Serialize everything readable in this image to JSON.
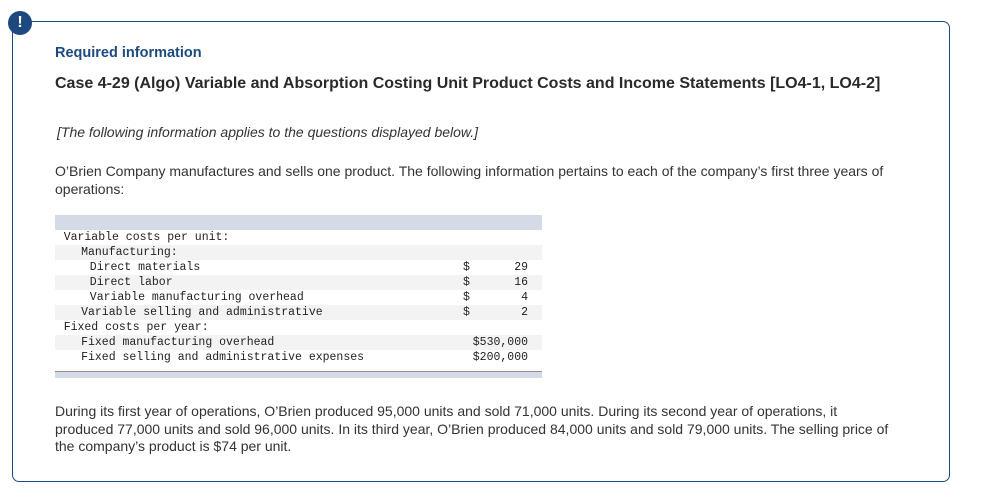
{
  "badge": {
    "icon": "exclamation-icon",
    "glyph": "!"
  },
  "header": {
    "required_label": "Required information",
    "case_title": "Case 4-29 (Algo) Variable and Absorption Costing Unit Product Costs and Income Statements [LO4-1, LO4-2]",
    "note": "[The following information applies to the questions displayed below.]"
  },
  "intro": "O’Brien Company manufactures and sells one product. The following information pertains to each of the company’s first three years of operations:",
  "table": {
    "rows": [
      {
        "label": "Variable costs per unit:",
        "indent": 1,
        "currency": "",
        "amount": ""
      },
      {
        "label": "Manufacturing:",
        "indent": 3,
        "currency": "",
        "amount": ""
      },
      {
        "label": "Direct materials",
        "indent": 4,
        "currency": "$",
        "amount": "29"
      },
      {
        "label": "Direct labor",
        "indent": 4,
        "currency": "$",
        "amount": "16"
      },
      {
        "label": "Variable manufacturing overhead",
        "indent": 4,
        "currency": "$",
        "amount": "4"
      },
      {
        "label": "Variable selling and administrative",
        "indent": 3,
        "currency": "$",
        "amount": "2"
      },
      {
        "label": "Fixed costs per year:",
        "indent": 1,
        "currency": "",
        "amount": ""
      },
      {
        "label": "Fixed manufacturing overhead",
        "indent": 3,
        "currency": "",
        "amount": "$530,000"
      },
      {
        "label": "Fixed selling and administrative expenses",
        "indent": 3,
        "currency": "",
        "amount": "$200,000"
      }
    ]
  },
  "outro": "During its first year of operations, O’Brien produced 95,000 units and sold 71,000 units. During its second year of operations, it produced 77,000 units and sold 96,000 units. In its third year, O’Brien produced 84,000 units and sold 79,000 units. The selling price of the company’s product is $74 per unit.",
  "colors": {
    "accent": "#1c4a80",
    "table_band": "#d5dbe6",
    "row_shade": "#f3f3f3"
  }
}
